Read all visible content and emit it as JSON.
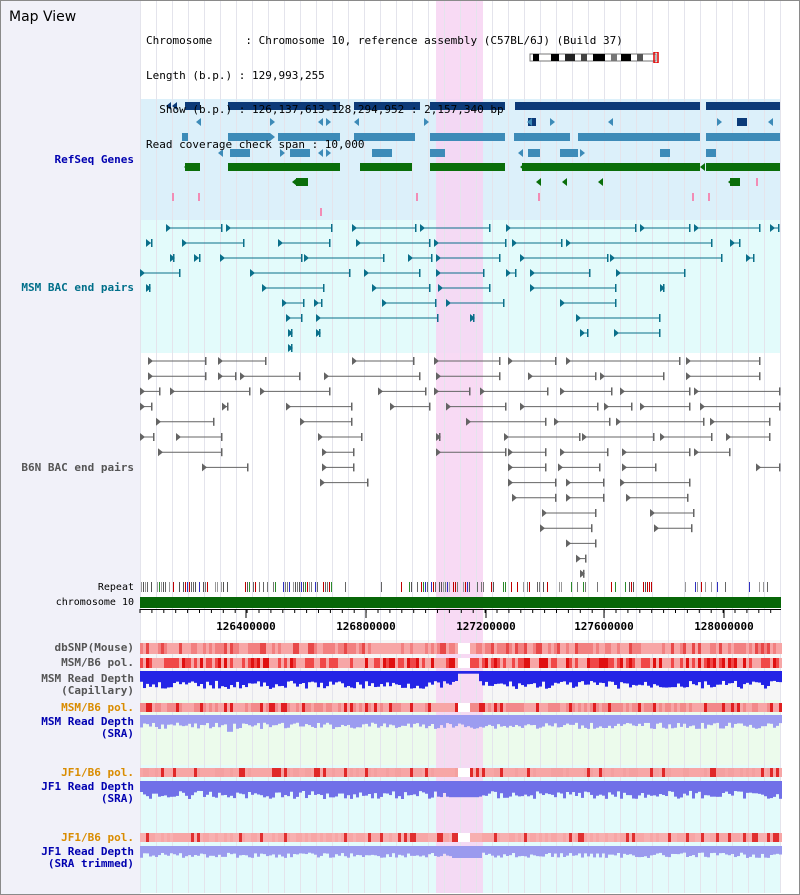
{
  "view": {
    "title": "Map View"
  },
  "info": {
    "chromosome_line": "Chromosome     : Chromosome 10, reference assembly (C57BL/6J) (Build 37)",
    "length_line": "Length (b.p.) : 129,993,255",
    "show_line": "  Show (b.p.) : 126,137,613-128,294,952 : 2,157,340 bp",
    "coverage_line": "Read coverage check span : 10,000"
  },
  "labels": {
    "refseq": "RefSeq Genes",
    "msm_bac": "MSM BAC end pairs",
    "b6n_bac": "B6N BAC end pairs",
    "repeat": "Repeat",
    "chromosome": "chromosome 10",
    "dbsnp": "dbSNP(Mouse)",
    "msm_pol": "MSM/B6 pol.",
    "msm_depth_cap_1": "MSM Read Depth",
    "msm_depth_cap_2": "(Capillary)",
    "msm_pol2": "MSM/B6 pol.",
    "msm_depth_sra_1": "MSM Read Depth",
    "msm_depth_sra_2": "(SRA)",
    "jf1_pol": "JF1/B6 pol.",
    "jf1_depth_sra_1": "JF1 Read Depth",
    "jf1_depth_sra_2": "(SRA)",
    "jf1_pol2": "JF1/B6 pol.",
    "jf1_depth_trim_1": "JF1 Read Depth",
    "jf1_depth_trim_2": "(SRA trimmed)"
  },
  "axis": {
    "ticks": [
      "126400000",
      "126800000",
      "127200000",
      "127600000",
      "128000000"
    ]
  },
  "colors": {
    "refseq_dark": "#0c3a78",
    "refseq_mid": "#3d8bb8",
    "refseq_green": "#0a6e0a",
    "msm_bac": "#0a6f8a",
    "b6n_bac": "#646464",
    "chromosome_bar": "#076607",
    "label_blue": "#0000b0",
    "label_teal": "#006f8a",
    "label_orange": "#d98c00",
    "highlight": "#f7d4f2"
  }
}
